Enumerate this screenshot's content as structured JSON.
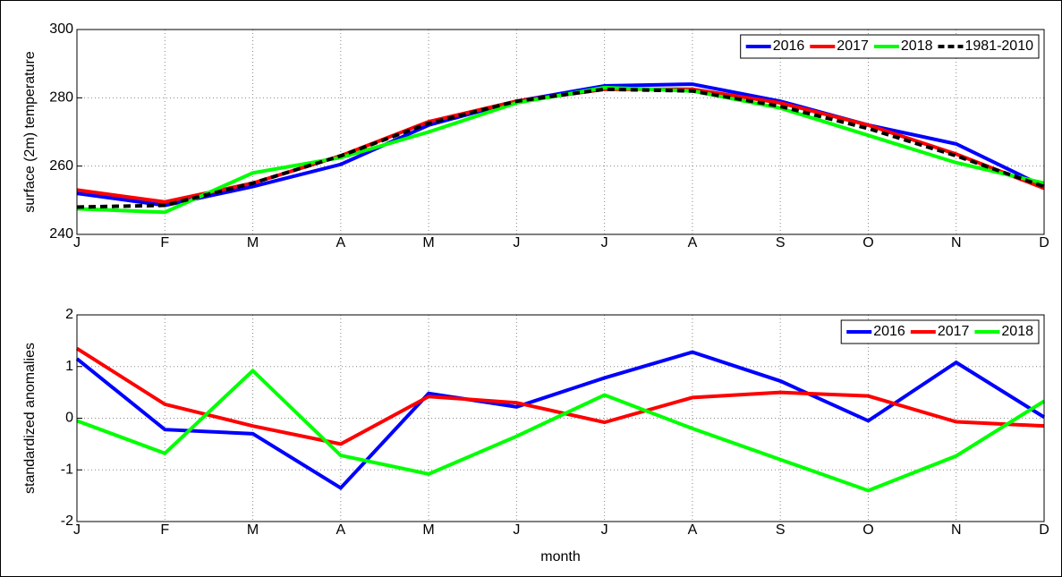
{
  "chart_data": [
    {
      "type": "line",
      "ylabel": "surface (2m) temperature",
      "categories": [
        "J",
        "F",
        "M",
        "A",
        "M",
        "J",
        "J",
        "A",
        "S",
        "O",
        "N",
        "D"
      ],
      "ylim": [
        240,
        300
      ],
      "yticks": [
        240,
        260,
        280,
        300
      ],
      "grid": true,
      "legend": "upper right",
      "series": [
        {
          "name": "2016",
          "color": "#0000ff",
          "linestyle": "solid",
          "values": [
            252,
            248.5,
            254,
            260.5,
            272,
            279,
            283.5,
            284,
            279,
            272,
            266.5,
            254
          ]
        },
        {
          "name": "2017",
          "color": "#ff0000",
          "linestyle": "solid",
          "values": [
            253,
            249.5,
            255,
            263,
            273,
            279,
            282.5,
            282.5,
            278.5,
            272,
            263.5,
            253.5
          ]
        },
        {
          "name": "2018",
          "color": "#00ff00",
          "linestyle": "solid",
          "values": [
            247.5,
            246.5,
            258,
            262.5,
            270,
            278.5,
            283,
            282,
            277,
            269,
            261,
            255
          ]
        },
        {
          "name": "1981-2010",
          "color": "#000000",
          "linestyle": "dashed",
          "values": [
            248,
            248.5,
            255,
            263,
            272.5,
            279,
            282.5,
            282,
            277.5,
            271,
            263,
            254
          ]
        }
      ]
    },
    {
      "type": "line",
      "ylabel": "standardized anomalies",
      "xlabel": "month",
      "categories": [
        "J",
        "F",
        "M",
        "A",
        "M",
        "J",
        "J",
        "A",
        "S",
        "O",
        "N",
        "D"
      ],
      "ylim": [
        -2,
        2
      ],
      "yticks": [
        -2,
        -1,
        0,
        1,
        2
      ],
      "grid": true,
      "legend": "upper right",
      "series": [
        {
          "name": "2016",
          "color": "#0000ff",
          "linestyle": "solid",
          "values": [
            1.15,
            -0.22,
            -0.3,
            -1.35,
            0.48,
            0.22,
            0.78,
            1.28,
            0.72,
            -0.05,
            1.08,
            0.02
          ]
        },
        {
          "name": "2017",
          "color": "#ff0000",
          "linestyle": "solid",
          "values": [
            1.35,
            0.27,
            -0.15,
            -0.5,
            0.42,
            0.3,
            -0.08,
            0.4,
            0.5,
            0.43,
            -0.07,
            -0.15
          ]
        },
        {
          "name": "2018",
          "color": "#00ff00",
          "linestyle": "solid",
          "values": [
            -0.05,
            -0.68,
            0.92,
            -0.72,
            -1.08,
            -0.35,
            0.45,
            -0.2,
            -0.8,
            -1.4,
            -0.73,
            0.33
          ]
        }
      ]
    }
  ]
}
